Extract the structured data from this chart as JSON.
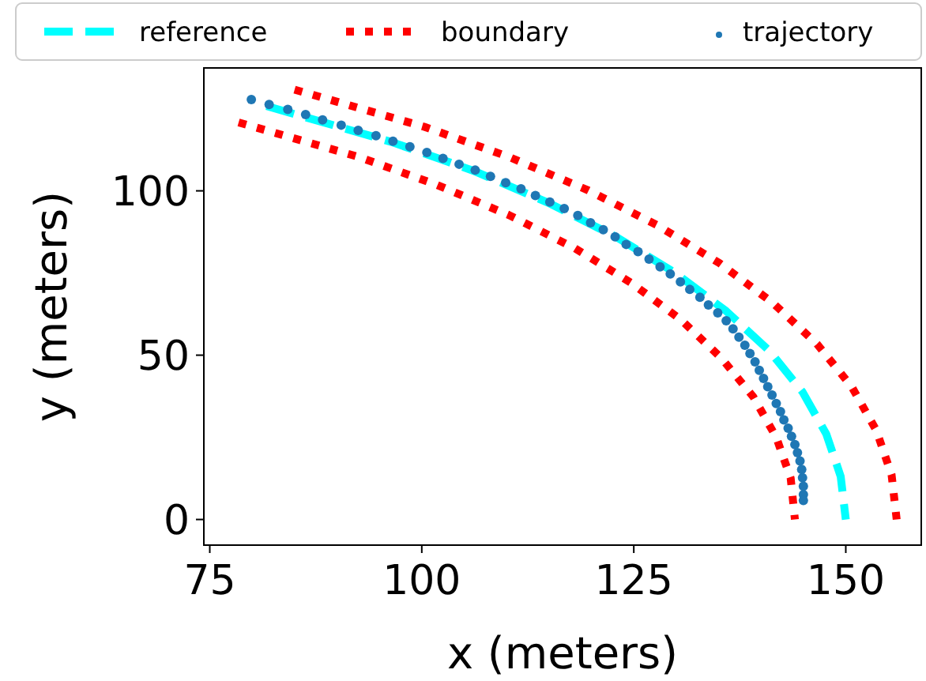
{
  "chart_data": {
    "type": "line",
    "xlabel": "x (meters)",
    "ylabel": "y (meters)",
    "xlim": [
      74.3,
      158.9
    ],
    "ylim": [
      -7.8,
      137.4
    ],
    "xticks": [
      75,
      100,
      125,
      150
    ],
    "yticks": [
      0,
      50,
      100
    ],
    "legend": "top",
    "grid": false,
    "series": [
      {
        "name": "reference",
        "color": "#00ffff",
        "line_style": "dashed",
        "x": [
          81.7,
          96.4,
          106.1,
          114.9,
          122.9,
          129.9,
          135.9,
          141.0,
          144.9,
          147.7,
          149.4,
          150
        ],
        "values": [
          125.8,
          114.9,
          106.1,
          96.4,
          86.0,
          75.0,
          63.4,
          51.3,
          38.8,
          26.0,
          13.1,
          0
        ]
      },
      {
        "name": "boundary",
        "color": "#ff0000",
        "line_style": "dotted",
        "x": [
          78.4,
          92.6,
          101.8,
          110.3,
          118.0,
          124.7,
          130.5,
          135.3,
          139.1,
          141.8,
          143.5,
          144
        ],
        "values": [
          120.8,
          110.3,
          101.8,
          92.6,
          82.6,
          72.0,
          60.9,
          49.2,
          37.3,
          25.0,
          12.6,
          0
        ]
      },
      {
        "color": "#ff0000",
        "line_style": "dotted",
        "x": [
          85.0,
          100.3,
          110.3,
          119.5,
          127.8,
          135.1,
          141.4,
          146.6,
          150.7,
          153.6,
          155.4,
          156
        ],
        "values": [
          130.8,
          119.5,
          110.3,
          100.3,
          89.5,
          78.0,
          65.9,
          53.4,
          40.4,
          27.1,
          13.6,
          0
        ]
      },
      {
        "name": "trajectory",
        "type": "scatter",
        "marker": "circle",
        "color": "#1f77b4",
        "x": [
          79.9,
          82.0,
          84.2,
          86.3,
          88.3,
          90.5,
          92.5,
          94.6,
          96.6,
          98.6,
          100.6,
          102.5,
          104.4,
          106.3,
          108.1,
          109.9,
          111.7,
          113.4,
          115.1,
          116.8,
          118.4,
          119.9,
          121.4,
          122.8,
          124.1,
          125.5,
          126.8,
          128.1,
          129.3,
          130.5,
          131.6,
          132.8,
          133.8,
          134.9,
          135.9,
          136.7,
          137.4,
          138.1,
          138.7,
          139.3,
          139.8,
          140.3,
          140.8,
          141.3,
          141.8,
          142.3,
          142.7,
          143.2,
          143.6,
          144.0,
          144.3,
          144.6,
          144.8,
          144.9,
          145.0,
          145.0,
          145.0
        ],
        "values": [
          127.8,
          126.3,
          124.8,
          123.2,
          121.6,
          120.0,
          118.4,
          116.8,
          115.1,
          113.4,
          111.7,
          109.9,
          108.1,
          106.3,
          104.4,
          102.5,
          100.6,
          98.6,
          96.6,
          94.6,
          92.5,
          90.3,
          88.2,
          86.0,
          83.7,
          81.5,
          79.2,
          76.9,
          74.7,
          72.3,
          70.0,
          67.6,
          65.3,
          62.9,
          60.5,
          58.0,
          55.5,
          53.0,
          50.5,
          48.0,
          45.4,
          42.9,
          40.4,
          37.9,
          35.3,
          32.8,
          30.3,
          27.8,
          25.3,
          22.8,
          20.3,
          17.8,
          15.2,
          12.7,
          10.1,
          7.6,
          5.8
        ]
      }
    ]
  }
}
